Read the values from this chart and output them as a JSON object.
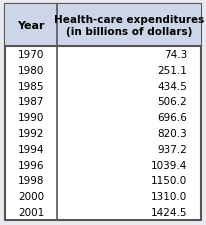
{
  "col1_header": "Year",
  "col2_header": "Health-care expenditures\n(in billions of dollars)",
  "years": [
    "1970",
    "1980",
    "1985",
    "1987",
    "1990",
    "1992",
    "1994",
    "1996",
    "1998",
    "2000",
    "2001"
  ],
  "values": [
    "74.3",
    "251.1",
    "434.5",
    "506.2",
    "696.6",
    "820.3",
    "937.2",
    "1039.4",
    "1150.0",
    "1310.0",
    "1424.5"
  ],
  "header_bg": "#cdd5e8",
  "bg_color": "#e8eaf0",
  "border_color": "#555555",
  "text_color": "#000000",
  "fig_width": 2.06,
  "fig_height": 2.26,
  "dpi": 100
}
